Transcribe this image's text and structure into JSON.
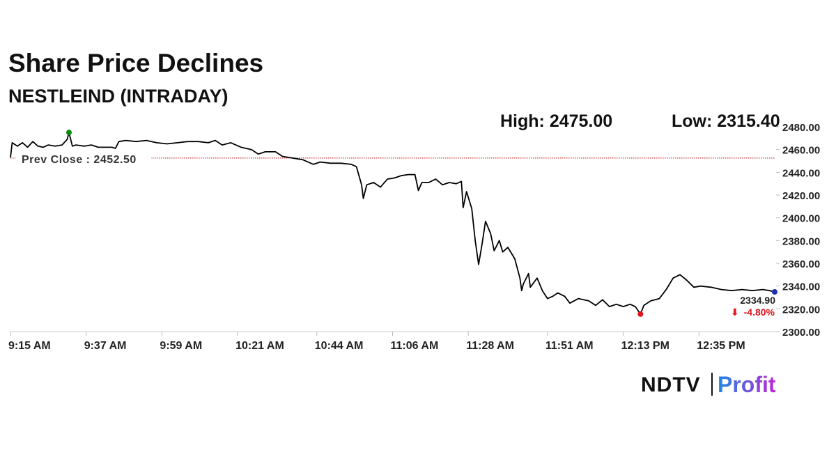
{
  "chart_data": {
    "type": "line",
    "title": "Share Price Declines",
    "subtitle": "NESTLEIND (INTRADAY)",
    "high_label": "High: 2475.00",
    "low_label": "Low: 2315.40",
    "prev_close": {
      "value": 2452.5,
      "label": "Prev Close : 2452.50",
      "color": "#c00000"
    },
    "last_label": "2334.90",
    "change_label": "-4.80%",
    "brand": [
      "NDTV",
      "Profit"
    ],
    "x": [
      555,
      555.5,
      557,
      558.5,
      560,
      561.5,
      563,
      564.5,
      566,
      568,
      570,
      571.5,
      572,
      573,
      574,
      576.5,
      578.5,
      580.5,
      582.5,
      584.5,
      585.5,
      586.5,
      588.5,
      591.5,
      594.5,
      597.5,
      600.5,
      603.5,
      606.5,
      609.5,
      612.5,
      614.5,
      616.5,
      619,
      622,
      625,
      627,
      629,
      632,
      634,
      636,
      638,
      640,
      643,
      645,
      648,
      651,
      654,
      655.5,
      657,
      657.5,
      658.5,
      660.5,
      662.5,
      664.5,
      666.5,
      668.5,
      670.5,
      672.5,
      673.5,
      674.5,
      676.5,
      678.5,
      680.5,
      682.5,
      684.5,
      686,
      686.5,
      687.5,
      689,
      690,
      691,
      692,
      693,
      694.5,
      695.5,
      697,
      698,
      699.5,
      701.5,
      703,
      703.5,
      704,
      705.5,
      706,
      708,
      709.5,
      711,
      712.5,
      714,
      716,
      717.5,
      720,
      723,
      725,
      727,
      729,
      731,
      733,
      735,
      736.5,
      738,
      739,
      741,
      743.5,
      745.5,
      747.5,
      749.5,
      751.5,
      753.5,
      755.5,
      758.5,
      761.5,
      764.5,
      767.5,
      770.5,
      773.5,
      775.5,
      777
    ],
    "series": [
      {
        "name": "NESTLEIND",
        "color": "#000000",
        "values": [
          2453,
          2466,
          2463,
          2466,
          2462,
          2467,
          2463,
          2462,
          2464,
          2463,
          2464,
          2469,
          2475,
          2463,
          2464,
          2463,
          2464,
          2462,
          2462,
          2462,
          2461,
          2467,
          2468,
          2467,
          2468,
          2466,
          2465,
          2466,
          2467,
          2467,
          2466,
          2468,
          2464,
          2466,
          2462,
          2460,
          2456,
          2458,
          2458,
          2454,
          2453,
          2452,
          2451,
          2447,
          2449,
          2448,
          2448,
          2447,
          2445,
          2429,
          2417,
          2429,
          2431,
          2427,
          2434,
          2435,
          2437,
          2438,
          2438,
          2424,
          2431,
          2431,
          2434,
          2429,
          2431,
          2430,
          2432,
          2409,
          2423,
          2408,
          2380,
          2359,
          2377,
          2397,
          2386,
          2371,
          2380,
          2370,
          2374,
          2364,
          2347,
          2336,
          2342,
          2351,
          2339,
          2347,
          2336,
          2329,
          2331,
          2334,
          2331,
          2325,
          2329,
          2327,
          2323,
          2328,
          2322,
          2324,
          2322,
          2324,
          2322,
          2315.4,
          2323,
          2327,
          2329,
          2337,
          2347,
          2350,
          2345,
          2339,
          2340,
          2339,
          2337,
          2336,
          2337,
          2336,
          2337,
          2336,
          2334.9
        ]
      }
    ],
    "markers": [
      {
        "index": 12,
        "color": "#0a8a0a"
      },
      {
        "index": 101,
        "color": "#e0141e"
      },
      {
        "index": 118,
        "color": "#1f2fb0"
      }
    ],
    "xlim": [
      555,
      777
    ],
    "xticks": [
      {
        "value": 555,
        "label": "9:15 AM"
      },
      {
        "value": 577,
        "label": "9:37 AM"
      },
      {
        "value": 599,
        "label": "9:59 AM"
      },
      {
        "value": 621,
        "label": "10:21 AM"
      },
      {
        "value": 644,
        "label": "10:44 AM"
      },
      {
        "value": 666,
        "label": "11:06 AM"
      },
      {
        "value": 688,
        "label": "11:28 AM"
      },
      {
        "value": 711,
        "label": "11:51 AM"
      },
      {
        "value": 733,
        "label": "12:13 PM"
      },
      {
        "value": 755,
        "label": "12:35 PM"
      }
    ],
    "ylim": [
      2300,
      2480
    ],
    "yticks": [
      {
        "value": 2300,
        "label": "2300.00"
      },
      {
        "value": 2320,
        "label": "2320.00"
      },
      {
        "value": 2340,
        "label": "2340.00"
      },
      {
        "value": 2360,
        "label": "2360.00"
      },
      {
        "value": 2380,
        "label": "2380.00"
      },
      {
        "value": 2400,
        "label": "2400.00"
      },
      {
        "value": 2420,
        "label": "2420.00"
      },
      {
        "value": 2440,
        "label": "2440.00"
      },
      {
        "value": 2460,
        "label": "2460.00"
      },
      {
        "value": 2480,
        "label": "2480.00"
      }
    ],
    "grid": false
  }
}
